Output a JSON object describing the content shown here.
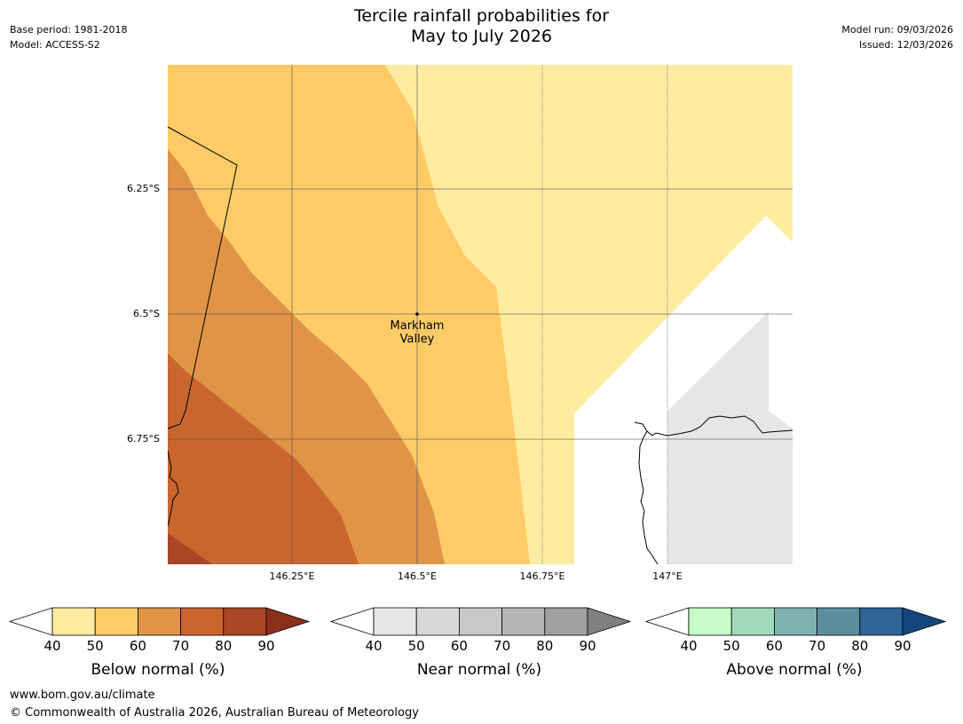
{
  "title": {
    "line1": "Tercile rainfall probabilities for",
    "line2": "May to July 2026"
  },
  "meta_left": {
    "base_period": "Base period: 1981-2018",
    "model": "Model: ACCESS-S2"
  },
  "meta_right": {
    "model_run": "Model run: 09/03/2026",
    "issued": "Issued: 12/03/2026"
  },
  "map": {
    "lat_labels": [
      "6.25°S",
      "6.5°S",
      "6.75°S"
    ],
    "lon_labels": [
      "146.25°E",
      "146.5°E",
      "146.75°E",
      "147°E"
    ],
    "place": {
      "name_line1": "Markham",
      "name_line2": "Valley",
      "lat": -6.5,
      "lon": 146.5
    }
  },
  "legends": {
    "ticks": [
      "40",
      "50",
      "60",
      "70",
      "80",
      "90"
    ],
    "below": {
      "title": "Below normal (%)",
      "colors": [
        "#ffeca0",
        "#fecb67",
        "#e09446",
        "#c9652f",
        "#a94626",
        "#8c2e1c"
      ]
    },
    "near": {
      "title": "Near normal (%)",
      "colors": [
        "#e6e6e6",
        "#d8d8d8",
        "#c8c8c8",
        "#b4b4b4",
        "#a0a0a0",
        "#7f7f7f"
      ]
    },
    "above": {
      "title": "Above normal (%)",
      "colors": [
        "#c8fcc8",
        "#a2d8bb",
        "#7fb2ae",
        "#5b8fa0",
        "#2f6496",
        "#12467c"
      ]
    }
  },
  "footer": {
    "url": "www.bom.gov.au/climate",
    "copyright": "© Commonwealth of Australia 2026, Australian Bureau of Meteorology"
  }
}
